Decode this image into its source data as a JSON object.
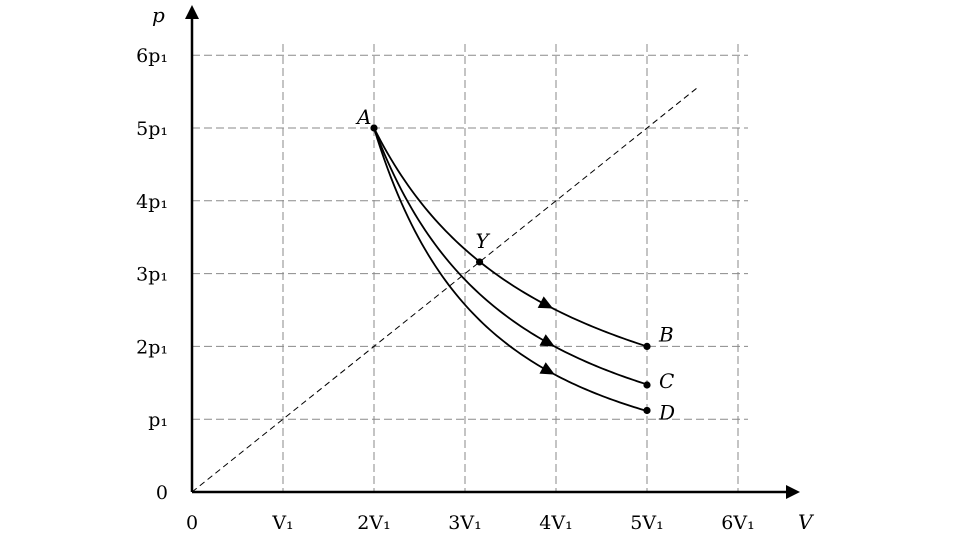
{
  "chart_data": {
    "type": "line",
    "title": "",
    "xlabel": "V",
    "ylabel": "p",
    "xlim": [
      0,
      6.5
    ],
    "ylim": [
      0,
      6.7
    ],
    "grid": true,
    "x_ticks": [
      {
        "value": 0,
        "label": "0"
      },
      {
        "value": 1,
        "label": "V₁"
      },
      {
        "value": 2,
        "label": "2V₁"
      },
      {
        "value": 3,
        "label": "3V₁"
      },
      {
        "value": 4,
        "label": "4V₁"
      },
      {
        "value": 5,
        "label": "5V₁"
      },
      {
        "value": 6,
        "label": "6V₁"
      }
    ],
    "y_ticks": [
      {
        "value": 0,
        "label": "0"
      },
      {
        "value": 1,
        "label": "p₁"
      },
      {
        "value": 2,
        "label": "2p₁"
      },
      {
        "value": 3,
        "label": "3p₁"
      },
      {
        "value": 4,
        "label": "4p₁"
      },
      {
        "value": 5,
        "label": "5p₁"
      },
      {
        "value": 6,
        "label": "6p₁"
      }
    ],
    "reference_line": {
      "x": [
        0,
        5.55
      ],
      "y": [
        0,
        5.55
      ],
      "style": "dashed"
    },
    "points": [
      {
        "label": "A",
        "x": 2,
        "y": 5
      },
      {
        "label": "Y",
        "x": 3.16,
        "y": 3.16
      },
      {
        "label": "B",
        "x": 5,
        "y": 2
      },
      {
        "label": "C",
        "x": 5,
        "y": 1.47
      },
      {
        "label": "D",
        "x": 5,
        "y": 1.12
      }
    ],
    "series": [
      {
        "from": "A",
        "to": "B",
        "exponent": 1.0,
        "arrow_at_x": 3.9
      },
      {
        "from": "A",
        "to": "C",
        "exponent": 1.33,
        "arrow_at_x": 3.92
      },
      {
        "from": "A",
        "to": "D",
        "exponent": 1.64,
        "arrow_at_x": 3.92
      }
    ]
  }
}
